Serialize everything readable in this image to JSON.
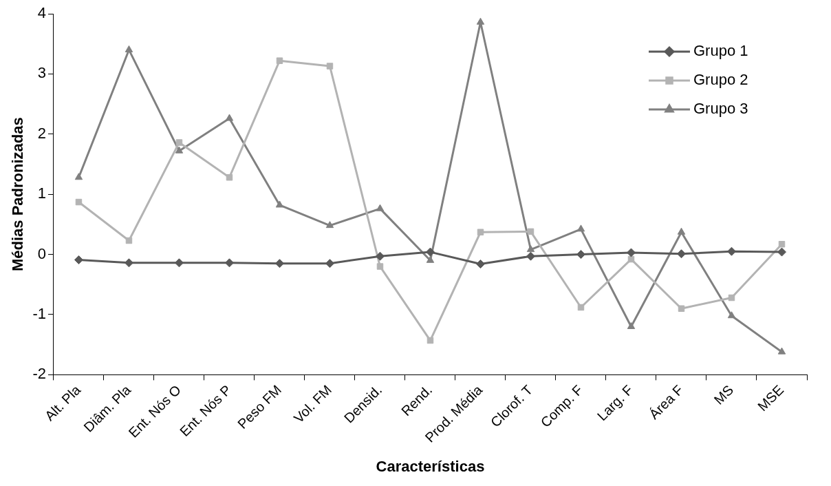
{
  "chart_data": {
    "type": "line",
    "xlabel": "Características",
    "ylabel": "Médias Padronizadas",
    "categories": [
      "Alt. Pla",
      "Diâm. Pla",
      "Ent. Nós O",
      "Ent. Nós P",
      "Peso FM",
      "Vol. FM",
      "Densid.",
      "Rend.",
      "Prod. Média",
      "Clorof. T",
      "Comp. F",
      "Larg. F",
      "Área F",
      "MS",
      "MSE"
    ],
    "series": [
      {
        "name": "Grupo 1",
        "color": "#595959",
        "marker": "diamond",
        "values": [
          -0.09,
          -0.14,
          -0.14,
          -0.14,
          -0.15,
          -0.15,
          -0.03,
          0.04,
          -0.16,
          -0.03,
          0.0,
          0.03,
          0.01,
          0.05,
          0.04
        ]
      },
      {
        "name": "Grupo 2",
        "color": "#b3b3b3",
        "marker": "square",
        "values": [
          0.87,
          0.23,
          1.86,
          1.28,
          3.22,
          3.13,
          -0.2,
          -1.43,
          0.37,
          0.38,
          -0.88,
          -0.08,
          -0.9,
          -0.72,
          0.17
        ]
      },
      {
        "name": "Grupo 3",
        "color": "#808080",
        "marker": "triangle",
        "values": [
          1.28,
          3.4,
          1.72,
          2.26,
          0.82,
          0.48,
          0.76,
          -0.1,
          3.86,
          0.08,
          0.42,
          -1.2,
          0.37,
          -1.02,
          -1.62
        ]
      }
    ],
    "ylim": [
      -2,
      4
    ],
    "yticks": [
      -2,
      -1,
      0,
      1,
      2,
      3,
      4
    ],
    "grid": false,
    "legend": "top right",
    "line_style": "solid"
  }
}
